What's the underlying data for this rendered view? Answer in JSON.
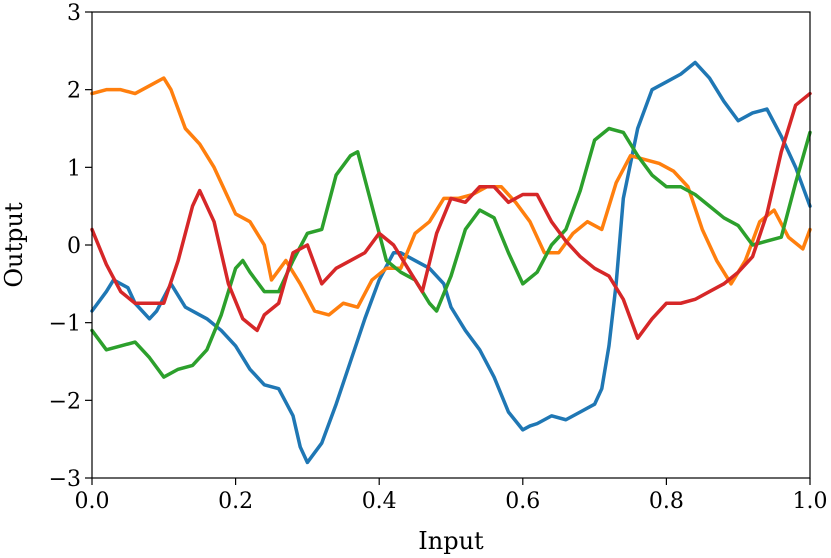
{
  "chart_data": {
    "type": "line",
    "title": "",
    "xlabel": "Input",
    "ylabel": "Output",
    "xlim": [
      0.0,
      1.0
    ],
    "ylim": [
      -3,
      3
    ],
    "xticks": [
      0.0,
      0.2,
      0.4,
      0.6,
      0.8,
      1.0
    ],
    "xtick_labels": [
      "0.0",
      "0.2",
      "0.4",
      "0.6",
      "0.8",
      "1.0"
    ],
    "yticks": [
      -3,
      -2,
      -1,
      0,
      1,
      2,
      3
    ],
    "ytick_labels": [
      "−3",
      "−2",
      "−1",
      "0",
      "1",
      "2",
      "3"
    ],
    "grid": false,
    "legend": "none",
    "series": [
      {
        "color": "#1f77b4",
        "x": [
          0.0,
          0.02,
          0.03,
          0.05,
          0.06,
          0.08,
          0.09,
          0.11,
          0.13,
          0.15,
          0.16,
          0.18,
          0.2,
          0.22,
          0.24,
          0.26,
          0.28,
          0.29,
          0.3,
          0.32,
          0.34,
          0.36,
          0.38,
          0.4,
          0.42,
          0.43,
          0.45,
          0.47,
          0.49,
          0.5,
          0.52,
          0.54,
          0.56,
          0.58,
          0.6,
          0.61,
          0.62,
          0.64,
          0.66,
          0.68,
          0.7,
          0.71,
          0.72,
          0.73,
          0.74,
          0.76,
          0.78,
          0.8,
          0.82,
          0.84,
          0.86,
          0.88,
          0.9,
          0.92,
          0.94,
          0.96,
          0.98,
          1.0
        ],
        "y": [
          -0.85,
          -0.6,
          -0.45,
          -0.55,
          -0.75,
          -0.95,
          -0.85,
          -0.5,
          -0.8,
          -0.9,
          -0.95,
          -1.1,
          -1.3,
          -1.6,
          -1.8,
          -1.85,
          -2.2,
          -2.6,
          -2.8,
          -2.55,
          -2.05,
          -1.5,
          -0.95,
          -0.45,
          -0.1,
          -0.1,
          -0.2,
          -0.3,
          -0.5,
          -0.8,
          -1.1,
          -1.35,
          -1.7,
          -2.15,
          -2.38,
          -2.33,
          -2.3,
          -2.2,
          -2.25,
          -2.15,
          -2.05,
          -1.85,
          -1.3,
          -0.5,
          0.6,
          1.5,
          2.0,
          2.1,
          2.2,
          2.35,
          2.15,
          1.85,
          1.6,
          1.7,
          1.75,
          1.4,
          1.0,
          0.5
        ]
      },
      {
        "color": "#ff7f0e",
        "x": [
          0.0,
          0.02,
          0.04,
          0.06,
          0.08,
          0.1,
          0.11,
          0.13,
          0.15,
          0.17,
          0.19,
          0.2,
          0.22,
          0.24,
          0.25,
          0.27,
          0.29,
          0.31,
          0.33,
          0.35,
          0.37,
          0.39,
          0.41,
          0.43,
          0.45,
          0.47,
          0.49,
          0.51,
          0.53,
          0.55,
          0.57,
          0.59,
          0.61,
          0.63,
          0.65,
          0.67,
          0.69,
          0.71,
          0.73,
          0.75,
          0.77,
          0.79,
          0.81,
          0.83,
          0.85,
          0.87,
          0.89,
          0.91,
          0.93,
          0.95,
          0.97,
          0.99,
          1.0
        ],
        "y": [
          1.95,
          2.0,
          2.0,
          1.95,
          2.05,
          2.15,
          2.0,
          1.5,
          1.3,
          1.0,
          0.6,
          0.4,
          0.3,
          0.0,
          -0.45,
          -0.2,
          -0.5,
          -0.85,
          -0.9,
          -0.75,
          -0.8,
          -0.45,
          -0.3,
          -0.3,
          0.15,
          0.3,
          0.6,
          0.6,
          0.65,
          0.75,
          0.75,
          0.55,
          0.3,
          -0.1,
          -0.1,
          0.15,
          0.3,
          0.2,
          0.8,
          1.15,
          1.1,
          1.05,
          0.95,
          0.75,
          0.2,
          -0.2,
          -0.5,
          -0.2,
          0.3,
          0.45,
          0.1,
          -0.05,
          0.2
        ]
      },
      {
        "color": "#2ca02c",
        "x": [
          0.0,
          0.02,
          0.04,
          0.06,
          0.08,
          0.1,
          0.12,
          0.14,
          0.16,
          0.18,
          0.2,
          0.21,
          0.22,
          0.24,
          0.26,
          0.28,
          0.3,
          0.32,
          0.34,
          0.36,
          0.37,
          0.39,
          0.41,
          0.43,
          0.45,
          0.47,
          0.48,
          0.5,
          0.52,
          0.54,
          0.56,
          0.58,
          0.6,
          0.62,
          0.64,
          0.66,
          0.68,
          0.7,
          0.72,
          0.74,
          0.76,
          0.78,
          0.8,
          0.82,
          0.84,
          0.86,
          0.88,
          0.9,
          0.92,
          0.94,
          0.96,
          0.98,
          1.0
        ],
        "y": [
          -1.1,
          -1.35,
          -1.3,
          -1.25,
          -1.45,
          -1.7,
          -1.6,
          -1.55,
          -1.35,
          -0.9,
          -0.3,
          -0.2,
          -0.35,
          -0.6,
          -0.6,
          -0.2,
          0.15,
          0.2,
          0.9,
          1.15,
          1.2,
          0.5,
          -0.2,
          -0.35,
          -0.45,
          -0.75,
          -0.85,
          -0.4,
          0.2,
          0.45,
          0.35,
          -0.1,
          -0.5,
          -0.35,
          0.0,
          0.2,
          0.7,
          1.35,
          1.5,
          1.45,
          1.15,
          0.9,
          0.75,
          0.75,
          0.65,
          0.5,
          0.35,
          0.25,
          0.0,
          0.05,
          0.1,
          0.8,
          1.45
        ]
      },
      {
        "color": "#d62728",
        "x": [
          0.0,
          0.02,
          0.04,
          0.06,
          0.08,
          0.1,
          0.12,
          0.14,
          0.15,
          0.17,
          0.19,
          0.21,
          0.23,
          0.24,
          0.26,
          0.28,
          0.3,
          0.32,
          0.34,
          0.36,
          0.38,
          0.4,
          0.42,
          0.44,
          0.46,
          0.48,
          0.5,
          0.52,
          0.54,
          0.56,
          0.58,
          0.6,
          0.62,
          0.64,
          0.66,
          0.68,
          0.7,
          0.72,
          0.74,
          0.76,
          0.78,
          0.8,
          0.82,
          0.84,
          0.86,
          0.88,
          0.9,
          0.92,
          0.94,
          0.96,
          0.98,
          1.0
        ],
        "y": [
          0.2,
          -0.25,
          -0.6,
          -0.75,
          -0.75,
          -0.75,
          -0.2,
          0.5,
          0.7,
          0.3,
          -0.5,
          -0.95,
          -1.1,
          -0.9,
          -0.75,
          -0.1,
          0.0,
          -0.5,
          -0.3,
          -0.2,
          -0.1,
          0.15,
          0.0,
          -0.3,
          -0.6,
          0.15,
          0.6,
          0.55,
          0.75,
          0.75,
          0.55,
          0.65,
          0.65,
          0.3,
          0.05,
          -0.15,
          -0.3,
          -0.4,
          -0.7,
          -1.2,
          -0.95,
          -0.75,
          -0.75,
          -0.7,
          -0.6,
          -0.5,
          -0.35,
          -0.15,
          0.4,
          1.2,
          1.8,
          1.95
        ]
      }
    ]
  }
}
